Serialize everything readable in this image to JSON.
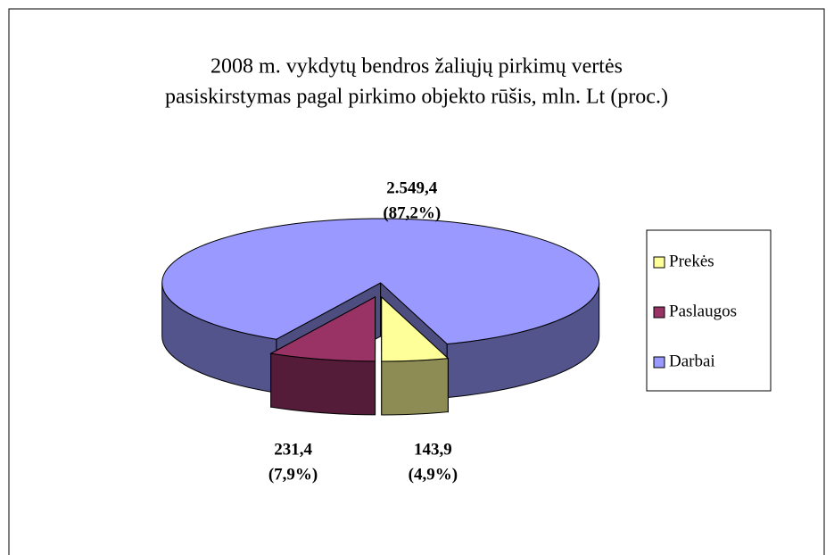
{
  "chart_data": {
    "type": "pie3d",
    "title": [
      "2008 m. vykdytų bendros žaliųjų pirkimų vertės",
      "pasiskirstymas pagal pirkimo objekto rūšis, mln. Lt (proc.)"
    ],
    "categories": [
      "Prekės",
      "Paslaugos",
      "Darbai"
    ],
    "values": [
      143.9,
      231.4,
      2549.4
    ],
    "value_labels": [
      "143,9",
      "231,4",
      "2.549,4"
    ],
    "percents": [
      4.9,
      7.9,
      87.2
    ],
    "percent_labels": [
      "(4,9%)",
      "(7,9%)",
      "(87,2%)"
    ],
    "colors": [
      "#FFFF99",
      "#993366",
      "#9999FF"
    ],
    "legend": "right"
  }
}
